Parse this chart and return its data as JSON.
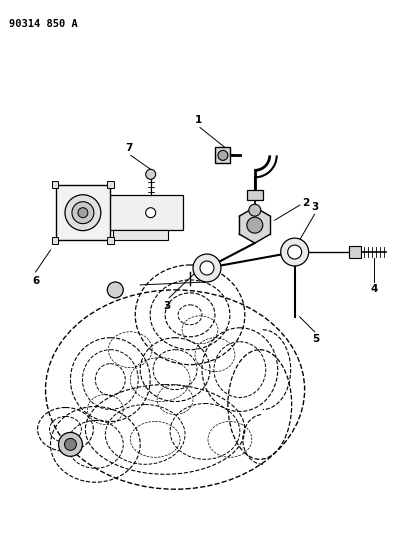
{
  "title_code": "90314 850 A",
  "background_color": "#ffffff",
  "line_color": "#000000",
  "figsize": [
    3.97,
    5.33
  ],
  "dpi": 100
}
